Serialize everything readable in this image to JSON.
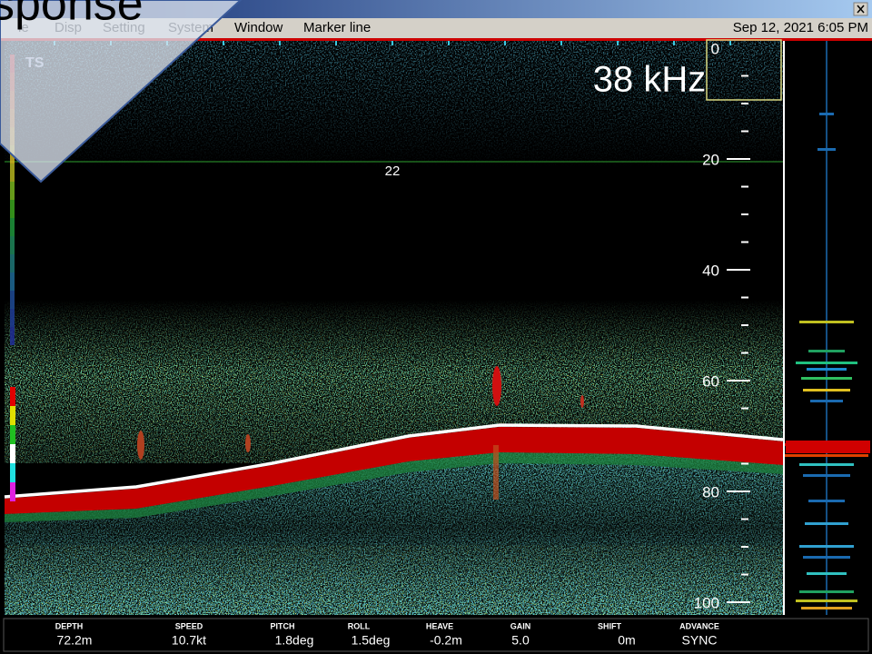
{
  "overlay_text": "sponse",
  "menu": [
    "le",
    "Disp",
    "Setting",
    "System",
    "Window",
    "Marker line"
  ],
  "datetime": "Sep 12, 2021 6:05 PM",
  "echogram": {
    "ts_label": "TS",
    "frequency": "38 kHz",
    "marker_label": "22",
    "depth_labels": [
      0,
      20,
      40,
      60,
      80,
      100
    ]
  },
  "status": [
    {
      "label": "DEPTH",
      "value": "72.2m"
    },
    {
      "label": "SPEED",
      "value": "10.7kt"
    },
    {
      "label": "PITCH",
      "value": "1.8deg"
    },
    {
      "label": "ROLL",
      "value": "1.5deg"
    },
    {
      "label": "HEAVE",
      "value": "-0.2m"
    },
    {
      "label": "GAIN",
      "value": "5.0"
    },
    {
      "label": "SHIFT",
      "value": "0m"
    },
    {
      "label": "ADVANCE",
      "value": "SYNC"
    }
  ]
}
